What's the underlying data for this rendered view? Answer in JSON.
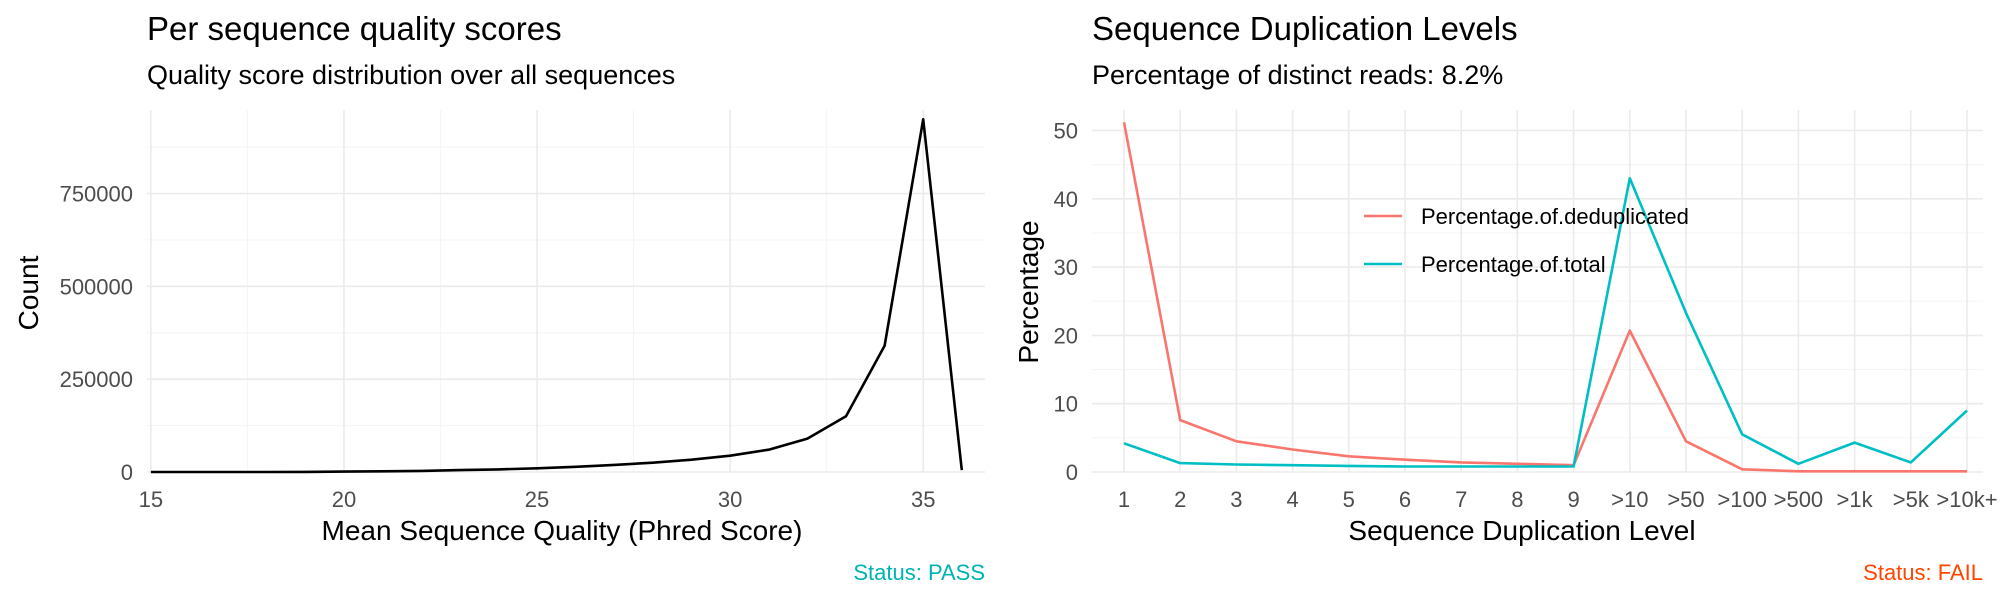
{
  "chart_data": [
    {
      "type": "line",
      "title": "Per sequence quality scores",
      "subtitle": "Quality score distribution over all sequences",
      "xlabel": "Mean Sequence Quality (Phred Score)",
      "ylabel": "Count",
      "xlim": [
        14.9,
        36.6
      ],
      "ylim": [
        0,
        975000
      ],
      "x_ticks": [
        15,
        20,
        25,
        30,
        35
      ],
      "y_ticks": [
        0,
        250000,
        500000,
        750000
      ],
      "grid": true,
      "status": {
        "text": "Status: PASS",
        "color": "#00b3b3"
      },
      "series": [
        {
          "color": "#000000",
          "x": [
            15,
            16,
            17,
            18,
            19,
            20,
            21,
            22,
            23,
            24,
            25,
            26,
            27,
            28,
            29,
            30,
            31,
            32,
            33,
            34,
            35,
            36
          ],
          "y": [
            0,
            0,
            0,
            100,
            400,
            1000,
            2000,
            3000,
            5000,
            7000,
            10000,
            14000,
            19000,
            25000,
            33000,
            44000,
            60000,
            90000,
            150000,
            340000,
            950000,
            5000
          ]
        }
      ]
    },
    {
      "type": "line",
      "title": "Sequence Duplication Levels",
      "subtitle": "Percentage of distinct reads: 8.2%",
      "xlabel": "Sequence Duplication Level",
      "ylabel": "Percentage",
      "categories": [
        "1",
        "2",
        "3",
        "4",
        "5",
        "6",
        "7",
        "8",
        "9",
        ">10",
        ">50",
        ">100",
        ">500",
        ">1k",
        ">5k",
        ">10k+"
      ],
      "ylim": [
        0,
        53
      ],
      "y_ticks": [
        0,
        10,
        20,
        30,
        40,
        50
      ],
      "grid": true,
      "legend_position": "top-center",
      "status": {
        "text": "Status: FAIL",
        "color": "#ff4500"
      },
      "series": [
        {
          "name": "Percentage.of.deduplicated",
          "color": "#f8766d",
          "values": [
            51.2,
            7.6,
            4.5,
            3.3,
            2.3,
            1.8,
            1.4,
            1.2,
            1.0,
            20.7,
            4.5,
            0.4,
            0.1,
            0.1,
            0.1,
            0.1
          ]
        },
        {
          "name": "Percentage.of.total",
          "color": "#00bfc4",
          "values": [
            4.2,
            1.3,
            1.1,
            1.0,
            0.9,
            0.8,
            0.8,
            0.8,
            0.8,
            43.0,
            23.3,
            5.5,
            1.2,
            4.3,
            1.4,
            9.0
          ]
        }
      ]
    }
  ]
}
